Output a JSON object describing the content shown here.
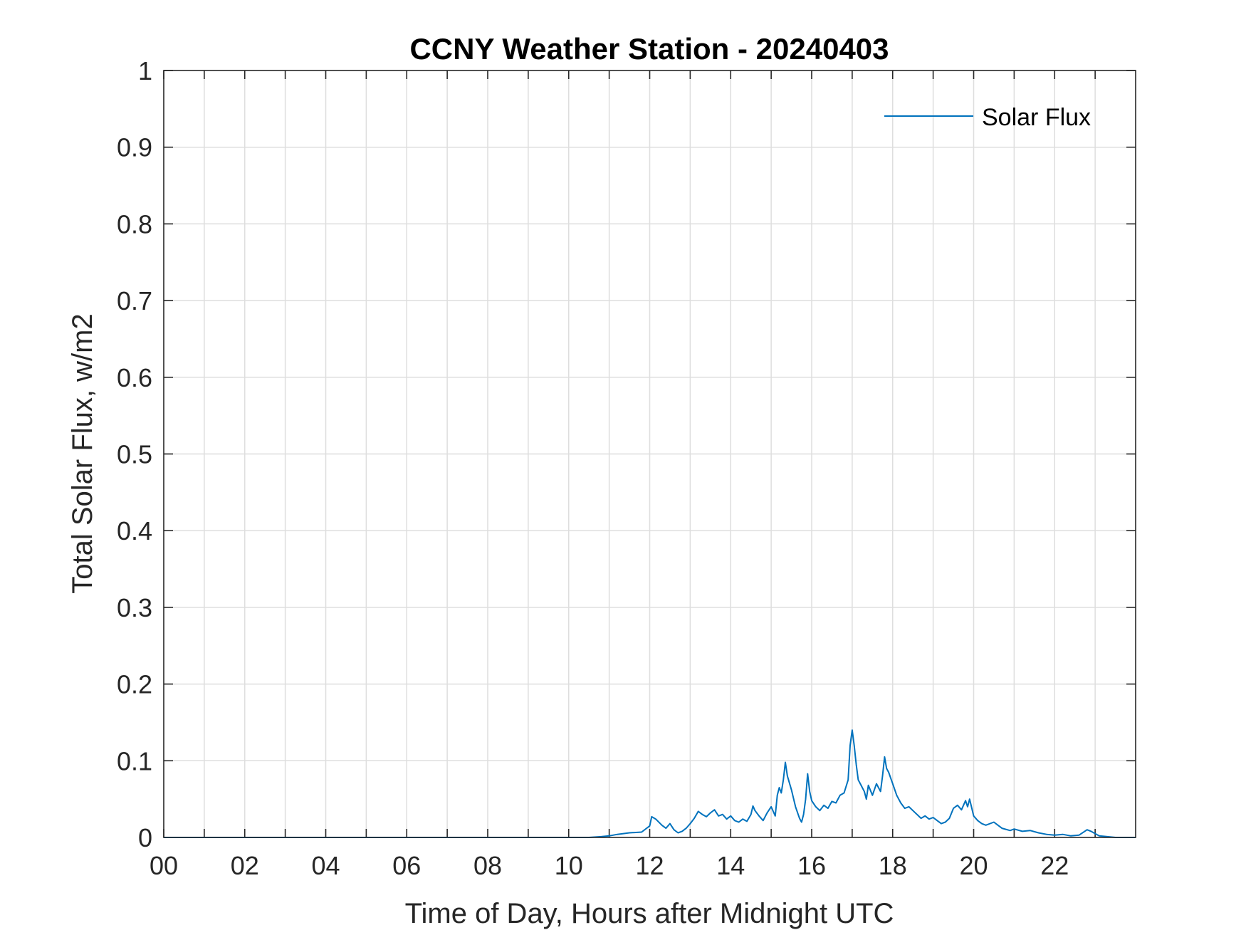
{
  "chart_data": {
    "type": "line",
    "title": "CCNY Weather Station - 20240403",
    "xlabel": "Time of Day, Hours after Midnight UTC",
    "ylabel": "Total Solar Flux, w/m2",
    "xlim": [
      0,
      24
    ],
    "ylim": [
      0,
      1
    ],
    "x_ticks": [
      0,
      2,
      4,
      6,
      8,
      10,
      12,
      14,
      16,
      18,
      20,
      22
    ],
    "x_tick_labels": [
      "00",
      "02",
      "04",
      "06",
      "08",
      "10",
      "12",
      "14",
      "16",
      "18",
      "20",
      "22"
    ],
    "y_ticks": [
      0,
      0.1,
      0.2,
      0.3,
      0.4,
      0.5,
      0.6,
      0.7,
      0.8,
      0.9,
      1
    ],
    "y_tick_labels": [
      "0",
      "0.1",
      "0.2",
      "0.3",
      "0.4",
      "0.5",
      "0.6",
      "0.7",
      "0.8",
      "0.9",
      "1"
    ],
    "grid": true,
    "legend_position": "top-right",
    "series": [
      {
        "name": "Solar Flux",
        "color": "#0072BD",
        "x": [
          0,
          10.5,
          10.8,
          11.0,
          11.2,
          11.5,
          11.8,
          12.0,
          12.05,
          12.15,
          12.3,
          12.4,
          12.5,
          12.6,
          12.7,
          12.8,
          12.9,
          13.0,
          13.1,
          13.2,
          13.3,
          13.4,
          13.5,
          13.6,
          13.7,
          13.8,
          13.9,
          14.0,
          14.1,
          14.2,
          14.3,
          14.4,
          14.5,
          14.55,
          14.6,
          14.7,
          14.8,
          14.9,
          15.0,
          15.1,
          15.15,
          15.2,
          15.25,
          15.3,
          15.35,
          15.4,
          15.5,
          15.6,
          15.7,
          15.75,
          15.8,
          15.85,
          15.9,
          15.95,
          16.0,
          16.1,
          16.2,
          16.3,
          16.4,
          16.5,
          16.6,
          16.7,
          16.8,
          16.9,
          16.95,
          17.0,
          17.05,
          17.1,
          17.15,
          17.2,
          17.3,
          17.35,
          17.4,
          17.5,
          17.6,
          17.7,
          17.75,
          17.8,
          17.85,
          17.9,
          18.0,
          18.1,
          18.2,
          18.3,
          18.4,
          18.5,
          18.6,
          18.7,
          18.8,
          18.9,
          19.0,
          19.1,
          19.2,
          19.3,
          19.4,
          19.5,
          19.6,
          19.7,
          19.8,
          19.85,
          19.9,
          20.0,
          20.1,
          20.2,
          20.3,
          20.5,
          20.7,
          20.9,
          21.0,
          21.2,
          21.4,
          21.6,
          21.8,
          22.0,
          22.2,
          22.4,
          22.6,
          22.8,
          22.9,
          23.0,
          23.1,
          23.3,
          23.5,
          24.0
        ],
        "values": [
          0,
          0,
          0.001,
          0.002,
          0.004,
          0.006,
          0.007,
          0.015,
          0.027,
          0.024,
          0.016,
          0.012,
          0.018,
          0.01,
          0.006,
          0.008,
          0.012,
          0.018,
          0.025,
          0.034,
          0.03,
          0.027,
          0.032,
          0.036,
          0.028,
          0.03,
          0.024,
          0.028,
          0.022,
          0.02,
          0.024,
          0.021,
          0.03,
          0.041,
          0.035,
          0.028,
          0.022,
          0.032,
          0.04,
          0.028,
          0.055,
          0.065,
          0.058,
          0.075,
          0.098,
          0.08,
          0.062,
          0.04,
          0.025,
          0.02,
          0.03,
          0.05,
          0.083,
          0.06,
          0.048,
          0.04,
          0.035,
          0.042,
          0.038,
          0.047,
          0.045,
          0.055,
          0.058,
          0.075,
          0.12,
          0.14,
          0.12,
          0.095,
          0.075,
          0.07,
          0.06,
          0.05,
          0.068,
          0.055,
          0.07,
          0.06,
          0.08,
          0.105,
          0.09,
          0.085,
          0.07,
          0.055,
          0.045,
          0.038,
          0.04,
          0.035,
          0.03,
          0.025,
          0.028,
          0.024,
          0.026,
          0.022,
          0.018,
          0.02,
          0.025,
          0.038,
          0.042,
          0.036,
          0.048,
          0.04,
          0.05,
          0.028,
          0.022,
          0.018,
          0.016,
          0.02,
          0.012,
          0.009,
          0.011,
          0.008,
          0.009,
          0.006,
          0.004,
          0.003,
          0.004,
          0.002,
          0.003,
          0.01,
          0.008,
          0.005,
          0.002,
          0.001,
          0,
          0
        ]
      }
    ]
  }
}
